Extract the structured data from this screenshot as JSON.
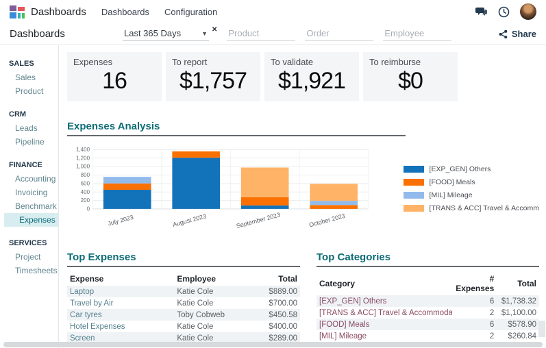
{
  "topbar": {
    "app_name": "Dashboards",
    "menus": [
      "Dashboards",
      "Configuration"
    ]
  },
  "controlbar": {
    "breadcrumb": "Dashboards",
    "date_filter_value": "Last 365 Days",
    "filters": [
      {
        "placeholder": "Product"
      },
      {
        "placeholder": "Order"
      },
      {
        "placeholder": "Employee"
      }
    ],
    "share_label": "Share"
  },
  "sidebar": {
    "sections": [
      {
        "header": "SALES",
        "items": [
          {
            "label": "Sales"
          },
          {
            "label": "Product"
          }
        ]
      },
      {
        "header": "CRM",
        "items": [
          {
            "label": "Leads"
          },
          {
            "label": "Pipeline"
          }
        ]
      },
      {
        "header": "FINANCE",
        "items": [
          {
            "label": "Accounting"
          },
          {
            "label": "Invoicing"
          },
          {
            "label": "Benchmark"
          },
          {
            "label": "Expenses",
            "active": true
          }
        ]
      },
      {
        "header": "SERVICES",
        "items": [
          {
            "label": "Project"
          },
          {
            "label": "Timesheets"
          }
        ]
      }
    ]
  },
  "kpis": [
    {
      "label": "Expenses",
      "value": "16"
    },
    {
      "label": "To report",
      "value": "$1,757"
    },
    {
      "label": "To validate",
      "value": "$1,921"
    },
    {
      "label": "To reimburse",
      "value": "$0"
    }
  ],
  "sections": {
    "analysis_title": "Expenses Analysis",
    "top_expenses_title": "Top Expenses",
    "top_categories_title": "Top Categories"
  },
  "chart_data": {
    "type": "bar",
    "stacked": true,
    "title": "Expenses Analysis",
    "categories": [
      "July 2023",
      "August 2023",
      "September 2023",
      "October 2023"
    ],
    "series": [
      {
        "name": "[EXP_GEN] Others",
        "color": "#1272ba",
        "values": [
          450,
          1205,
          80,
          0
        ]
      },
      {
        "name": "[FOOD] Meals",
        "color": "#fa7102",
        "values": [
          150,
          150,
          195,
          90
        ]
      },
      {
        "name": "[MIL] Mileage",
        "color": "#92bbec",
        "values": [
          155,
          0,
          0,
          100
        ]
      },
      {
        "name": "[TRANS & ACC] Travel & Accomm",
        "color": "#ffb366",
        "values": [
          0,
          0,
          700,
          400
        ]
      }
    ],
    "xlabel": "",
    "ylabel": "",
    "ylim": [
      0,
      1400
    ],
    "ytick_step": 200,
    "grid": true,
    "legend_position": "right"
  },
  "top_expenses": {
    "headers": [
      "Expense",
      "Employee",
      "Total"
    ],
    "rows": [
      {
        "expense": "Laptop",
        "employee": "Katie Cole",
        "total": "$889.00"
      },
      {
        "expense": "Travel by Air",
        "employee": "Katie Cole",
        "total": "$700.00"
      },
      {
        "expense": "Car tyres",
        "employee": "Toby Cobweb",
        "total": "$450.58"
      },
      {
        "expense": "Hotel Expenses",
        "employee": "Katie Cole",
        "total": "$400.00"
      },
      {
        "expense": "Screen",
        "employee": "Katie Cole",
        "total": "$289.00"
      }
    ]
  },
  "top_categories": {
    "headers": [
      "Category",
      "# Expenses",
      "Total"
    ],
    "rows": [
      {
        "category": "[EXP_GEN] Others",
        "count": "6",
        "total": "$1,738.32"
      },
      {
        "category": "[TRANS & ACC] Travel & Accommoda",
        "count": "2",
        "total": "$1,100.00"
      },
      {
        "category": "[FOOD] Meals",
        "count": "6",
        "total": "$578.90"
      },
      {
        "category": "[MIL] Mileage",
        "count": "2",
        "total": "$260.84"
      }
    ]
  },
  "colors": {
    "accent_teal": "#0d6c77",
    "sidebar_active_bg": "#d8edf0",
    "kpi_bg": "#f4f5f7",
    "link_teal": "#55808e",
    "link_maroon": "#8a4a60",
    "icon_navy": "#22394f"
  }
}
